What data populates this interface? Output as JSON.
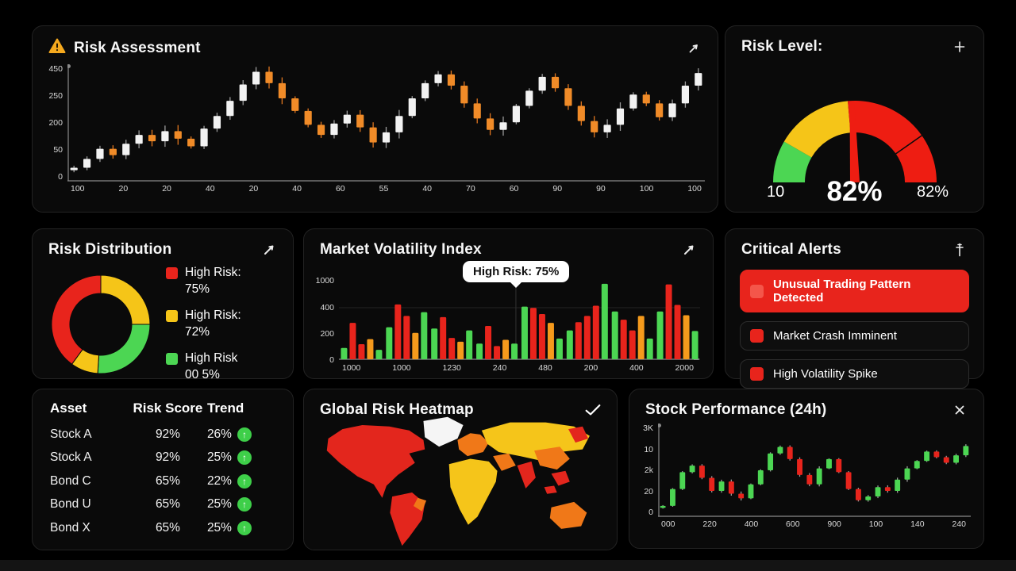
{
  "palette": {
    "red": "#e8241c",
    "orange": "#f59a1c",
    "yellow": "#f5c518",
    "green": "#4cd653",
    "white_candle": "#f2f2f2",
    "orange_candle": "#f08b28",
    "gauge_green": "#4cd653",
    "gauge_yellow": "#f5c518",
    "gauge_red": "#ee1d12",
    "map_red": "#e3261d",
    "map_orange": "#f07818",
    "map_yellow": "#f5c51a",
    "map_white": "#f5f5f5",
    "alert_red": "#e8241c",
    "trend_green": "#3ecf49"
  },
  "panels": {
    "risk_assessment": {
      "title": "Risk Assessment",
      "corner_icon": "expand-arrow-icon",
      "header_icon": "warning-triangle-icon"
    },
    "risk_level": {
      "title": "Risk Level:",
      "corner_icon": "plus-icon"
    },
    "risk_distribution": {
      "title": "Risk Distribution",
      "corner_icon": "diagonal-arrow-icon"
    },
    "market_volatility": {
      "title": "Market Volatility Index",
      "corner_icon": "diagonal-arrow-icon"
    },
    "critical_alerts": {
      "title": "Critical Alerts",
      "corner_icon": "dagger-icon",
      "items": [
        {
          "text": "Unusual Trading Pattern Detected",
          "highlight": true
        },
        {
          "text": "Market Crash Imminent",
          "highlight": false
        },
        {
          "text": "High Volatility Spike",
          "highlight": false
        }
      ]
    },
    "asset_table": {
      "headers": [
        "Asset",
        "Risk Score",
        "Trend"
      ],
      "rows": [
        {
          "asset": "Stock A",
          "score": "92%",
          "trend": "26%"
        },
        {
          "asset": "Stock A",
          "score": "92%",
          "trend": "25%"
        },
        {
          "asset": "Bond C",
          "score": "65%",
          "trend": "22%"
        },
        {
          "asset": "Bond U",
          "score": "65%",
          "trend": "25%"
        },
        {
          "asset": "Bond X",
          "score": "65%",
          "trend": "25%"
        }
      ]
    },
    "global_heatmap": {
      "title": "Global Risk Heatmap",
      "corner_icon": "check-icon"
    },
    "stock_performance": {
      "title": "Stock Performance (24h)",
      "corner_icon": "close-icon"
    }
  },
  "chart_data": [
    {
      "panel": "risk_assessment",
      "type": "candlestick",
      "ylim": [
        0,
        465
      ],
      "y_ticks": [
        "450",
        "250",
        "200",
        "50",
        "0"
      ],
      "x_ticks": [
        "100",
        "20",
        "20",
        "40",
        "20",
        "40",
        "60",
        "55",
        "40",
        "70",
        "60",
        "90",
        "90",
        "100",
        "100"
      ],
      "up_color": "white_candle",
      "down_color": "orange_candle",
      "up_wick": "#9a9a9a",
      "down_wick": "#e0761f",
      "wick_scale": 1.0,
      "closes": [
        55,
        90,
        130,
        105,
        150,
        185,
        160,
        200,
        170,
        140,
        210,
        260,
        320,
        385,
        435,
        390,
        330,
        280,
        225,
        185,
        230,
        265,
        215,
        155,
        195,
        260,
        330,
        390,
        425,
        380,
        310,
        250,
        205,
        235,
        300,
        360,
        415,
        370,
        300,
        240,
        195,
        225,
        290,
        345,
        310,
        255,
        310,
        380,
        430
      ]
    },
    {
      "panel": "risk_level",
      "type": "gauge",
      "segments": [
        {
          "color": "gauge_green",
          "from": 180,
          "to": 150
        },
        {
          "color": "gauge_yellow",
          "from": 150,
          "to": 95
        },
        {
          "color": "gauge_red",
          "from": 95,
          "to": 0
        }
      ],
      "divider_angle": 35,
      "needle_angle": 92,
      "left_label": "10",
      "center_label": "82%",
      "right_label": "82%"
    },
    {
      "panel": "risk_distribution",
      "type": "donut",
      "slices": [
        {
          "color": "yellow",
          "pct": 25
        },
        {
          "color": "green",
          "pct": 26
        },
        {
          "color": "yellow",
          "pct": 9
        },
        {
          "color": "red",
          "pct": 40
        }
      ],
      "legend": [
        {
          "color": "red",
          "label": "High Risk:",
          "value": "75%"
        },
        {
          "color": "yellow",
          "label": "High Risk:",
          "value": "72%"
        },
        {
          "color": "green",
          "label": "High Risk",
          "value": "00 5%"
        }
      ]
    },
    {
      "panel": "market_volatility",
      "type": "bar",
      "tooltip": "High Risk: 75%",
      "y_ticks": [
        {
          "label": "1000",
          "pos": 1.0
        },
        {
          "label": "400",
          "pos": 0.66
        },
        {
          "label": "200",
          "pos": 0.33
        },
        {
          "label": "0",
          "pos": 0.0
        }
      ],
      "x_ticks": [
        "1000",
        "1000",
        "1230",
        "240",
        "480",
        "200",
        "400",
        "2000"
      ],
      "groups": [
        {
          "values": [
            90,
            290,
            120,
            160,
            75
          ],
          "colors": [
            "green",
            "red",
            "red",
            "orange",
            "green"
          ]
        },
        {
          "values": [
            255,
            505,
            345,
            210,
            375
          ],
          "colors": [
            "green",
            "red",
            "red",
            "orange",
            "green"
          ]
        },
        {
          "values": [
            245,
            335,
            170,
            140,
            230
          ],
          "colors": [
            "green",
            "red",
            "red",
            "orange",
            "green"
          ]
        },
        {
          "values": [
            125,
            265,
            105,
            155,
            125
          ],
          "colors": [
            "green",
            "red",
            "red",
            "orange",
            "green"
          ]
        },
        {
          "values": [
            455,
            425,
            360,
            290,
            165
          ],
          "colors": [
            "green",
            "red",
            "red",
            "orange",
            "green"
          ]
        },
        {
          "values": [
            230,
            295,
            345,
            475,
            985
          ],
          "colors": [
            "green",
            "red",
            "red",
            "red",
            "green"
          ]
        },
        {
          "values": [
            380,
            315,
            230,
            345,
            165
          ],
          "colors": [
            "green",
            "red",
            "red",
            "orange",
            "green"
          ]
        },
        {
          "values": [
            380,
            970,
            495,
            350,
            225
          ],
          "colors": [
            "green",
            "red",
            "red",
            "orange",
            "green"
          ]
        }
      ]
    },
    {
      "panel": "stock_performance",
      "type": "candlestick",
      "ylim": [
        0,
        100
      ],
      "y_ticks": [
        "3K",
        "10",
        "2k",
        "20",
        "0"
      ],
      "x_ticks": [
        "000",
        "220",
        "400",
        "600",
        "900",
        "100",
        "140",
        "240"
      ],
      "up_color": "green",
      "down_color": "red",
      "up_wick": "#9a9a9a",
      "down_wick": "#9a9a9a",
      "wick_scale": 0.45,
      "closes": [
        12,
        30,
        48,
        55,
        42,
        28,
        38,
        25,
        20,
        35,
        50,
        68,
        75,
        62,
        45,
        35,
        52,
        62,
        48,
        30,
        18,
        22,
        32,
        28,
        40,
        52,
        60,
        70,
        64,
        58,
        66,
        76
      ]
    },
    {
      "panel": "global_heatmap",
      "type": "heatmap",
      "region_colors": {
        "north_america": "map_red",
        "greenland": "map_white",
        "south_america": "map_red",
        "europe": "map_orange",
        "africa": "map_yellow",
        "russia_asia": "map_yellow",
        "middle_east": "map_orange",
        "india": "map_red",
        "china": "map_orange",
        "se_asia": "map_red",
        "east_russia": "map_red",
        "australia": "map_orange"
      }
    }
  ]
}
